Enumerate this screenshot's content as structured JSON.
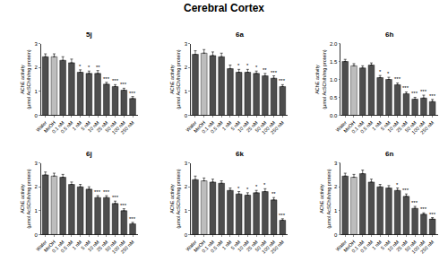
{
  "title": "Cerebral Cortex",
  "chart_data": [
    {
      "type": "bar",
      "title": "5j",
      "categories": [
        "Water",
        "MeOH",
        "0.1 nM",
        "0.5 nM",
        "1 nM",
        "5 nM",
        "10 nM",
        "25 nM",
        "50 nM",
        "100 nM",
        "250 nM"
      ],
      "values": [
        2.45,
        2.45,
        2.3,
        2.2,
        1.8,
        1.75,
        1.75,
        1.3,
        1.2,
        1.05,
        0.7
      ],
      "errors": [
        0.12,
        0.12,
        0.15,
        0.15,
        0.1,
        0.1,
        0.12,
        0.08,
        0.08,
        0.08,
        0.08
      ],
      "significance": [
        null,
        null,
        null,
        null,
        "*",
        "*",
        "**",
        "***",
        "***",
        "***",
        "***"
      ],
      "colors": [
        "#4d4d4d",
        "#bdbdbd",
        "#4d4d4d",
        "#4d4d4d",
        "#4d4d4d",
        "#4d4d4d",
        "#4d4d4d",
        "#4d4d4d",
        "#4d4d4d",
        "#4d4d4d",
        "#4d4d4d"
      ],
      "y_label": "AChE activity\n(µmol AcSCh/h/mg protein)",
      "ylim": [
        0,
        3
      ],
      "yticks": [
        0,
        1,
        2,
        3
      ]
    },
    {
      "type": "bar",
      "title": "6a",
      "categories": [
        "Water",
        "MeOH",
        "0.1 nM",
        "0.5 nM",
        "1 nM",
        "5 nM",
        "10 nM",
        "25 nM",
        "50 nM",
        "100 nM",
        "250 nM"
      ],
      "values": [
        2.55,
        2.6,
        2.5,
        2.45,
        1.95,
        1.8,
        1.8,
        1.75,
        1.65,
        1.55,
        1.2
      ],
      "errors": [
        0.15,
        0.15,
        0.15,
        0.15,
        0.15,
        0.12,
        0.12,
        0.1,
        0.1,
        0.1,
        0.08
      ],
      "significance": [
        null,
        null,
        null,
        null,
        null,
        "*",
        "*",
        "*",
        "**",
        "***",
        "***"
      ],
      "colors": [
        "#4d4d4d",
        "#bdbdbd",
        "#4d4d4d",
        "#4d4d4d",
        "#4d4d4d",
        "#4d4d4d",
        "#4d4d4d",
        "#4d4d4d",
        "#4d4d4d",
        "#4d4d4d",
        "#4d4d4d"
      ],
      "y_label": "AChE activity\n(µmol AcSCh/h/mg protein)",
      "ylim": [
        0,
        3
      ],
      "yticks": [
        0,
        1,
        2,
        3
      ]
    },
    {
      "type": "bar",
      "title": "6h",
      "categories": [
        "Water",
        "MeOH",
        "0.1 nM",
        "0.5 nM",
        "1 nM",
        "5 nM",
        "10 nM",
        "25 nM",
        "50 nM",
        "100 nM",
        "250 nM"
      ],
      "values": [
        1.5,
        1.38,
        1.32,
        1.4,
        1.05,
        1.0,
        0.85,
        0.6,
        0.45,
        0.48,
        0.38
      ],
      "errors": [
        0.06,
        0.06,
        0.06,
        0.06,
        0.06,
        0.06,
        0.05,
        0.05,
        0.05,
        0.08,
        0.06
      ],
      "significance": [
        null,
        null,
        null,
        null,
        "*",
        "*",
        "***",
        "***",
        "***",
        "***",
        "***"
      ],
      "colors": [
        "#4d4d4d",
        "#bdbdbd",
        "#4d4d4d",
        "#4d4d4d",
        "#4d4d4d",
        "#4d4d4d",
        "#4d4d4d",
        "#4d4d4d",
        "#4d4d4d",
        "#4d4d4d",
        "#4d4d4d"
      ],
      "y_label": "AChE activity\n(µmol AcSCh/h/mg protein)",
      "ylim": [
        0,
        2
      ],
      "yticks": [
        {
          "value": 0,
          "label": "0.0"
        },
        0.5,
        {
          "value": 1,
          "label": "1.0"
        },
        1.5,
        {
          "value": 2,
          "label": "2.0"
        }
      ]
    },
    {
      "type": "bar",
      "title": "6j",
      "categories": [
        "Water",
        "MeOH",
        "0.1 nM",
        "0.5 nM",
        "1 nM",
        "5 nM",
        "10 nM",
        "25 nM",
        "50 nM",
        "100 nM",
        "250 nM"
      ],
      "values": [
        2.5,
        2.45,
        2.4,
        2.1,
        2.0,
        1.9,
        1.55,
        1.55,
        1.3,
        1.0,
        0.45
      ],
      "errors": [
        0.12,
        0.12,
        0.12,
        0.1,
        0.1,
        0.1,
        0.08,
        0.08,
        0.1,
        0.08,
        0.06
      ],
      "significance": [
        null,
        null,
        null,
        null,
        null,
        null,
        "***",
        "***",
        "***",
        "***",
        "***"
      ],
      "colors": [
        "#4d4d4d",
        "#bdbdbd",
        "#4d4d4d",
        "#4d4d4d",
        "#4d4d4d",
        "#4d4d4d",
        "#4d4d4d",
        "#4d4d4d",
        "#4d4d4d",
        "#4d4d4d",
        "#4d4d4d"
      ],
      "y_label": "AChE activity\n(µmol AcSCh/h/mg protein)",
      "ylim": [
        0,
        3
      ],
      "yticks": [
        0,
        1,
        2,
        3
      ]
    },
    {
      "type": "bar",
      "title": "6k",
      "categories": [
        "Water",
        "MeOH",
        "0.1 nM",
        "0.5 nM",
        "1 nM",
        "5 nM",
        "10 nM",
        "25 nM",
        "50 nM",
        "100 nM",
        "250 nM"
      ],
      "values": [
        2.3,
        2.25,
        2.2,
        2.15,
        1.85,
        1.7,
        1.65,
        1.75,
        1.8,
        1.45,
        0.6
      ],
      "errors": [
        0.15,
        0.12,
        0.12,
        0.1,
        0.1,
        0.1,
        0.1,
        0.1,
        0.12,
        0.1,
        0.06
      ],
      "significance": [
        null,
        null,
        null,
        null,
        null,
        "*",
        "*",
        "*",
        "*",
        "**",
        "***"
      ],
      "colors": [
        "#4d4d4d",
        "#bdbdbd",
        "#4d4d4d",
        "#4d4d4d",
        "#4d4d4d",
        "#4d4d4d",
        "#4d4d4d",
        "#4d4d4d",
        "#4d4d4d",
        "#4d4d4d",
        "#4d4d4d"
      ],
      "y_label": "AChE activity\n(µmol AcSCh/h/mg protein)",
      "ylim": [
        0,
        3
      ],
      "yticks": [
        0,
        1,
        2,
        3
      ]
    },
    {
      "type": "bar",
      "title": "6n",
      "categories": [
        "Water",
        "MeOH",
        "0.1 nM",
        "0.5 nM",
        "1 nM",
        "5 nM",
        "10 nM",
        "25 nM",
        "50 nM",
        "100 nM",
        "250 nM"
      ],
      "values": [
        2.45,
        2.4,
        2.55,
        2.2,
        2.0,
        1.95,
        1.85,
        1.6,
        1.1,
        0.85,
        0.65
      ],
      "errors": [
        0.12,
        0.12,
        0.15,
        0.12,
        0.1,
        0.1,
        0.1,
        0.1,
        0.08,
        0.06,
        0.06
      ],
      "significance": [
        null,
        null,
        null,
        null,
        null,
        null,
        "*",
        "***",
        "***",
        "***",
        "***"
      ],
      "colors": [
        "#4d4d4d",
        "#bdbdbd",
        "#4d4d4d",
        "#4d4d4d",
        "#4d4d4d",
        "#4d4d4d",
        "#4d4d4d",
        "#4d4d4d",
        "#4d4d4d",
        "#4d4d4d",
        "#4d4d4d"
      ],
      "y_label": "AChE activity\n(µmol AcSCh/h/mg protein)",
      "ylim": [
        0,
        3
      ],
      "yticks": [
        0,
        1,
        2,
        3
      ]
    }
  ]
}
